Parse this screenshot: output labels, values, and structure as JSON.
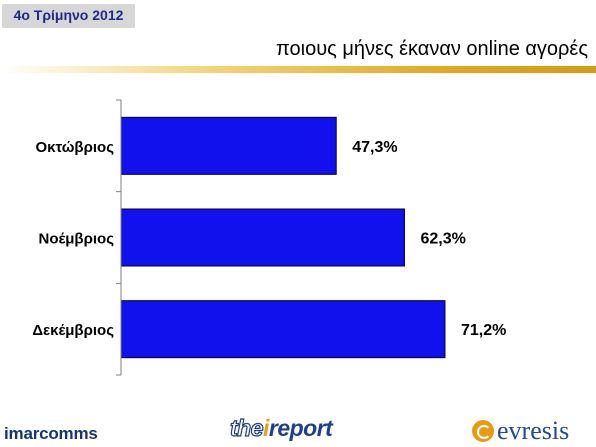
{
  "header": {
    "quarter_badge": "4ο Τρίμηνο 2012",
    "subtitle": "ποιους μήνες έκαναν online αγορές"
  },
  "chart_data": {
    "type": "bar",
    "orientation": "horizontal",
    "title": "",
    "categories": [
      "Οκτώβριος",
      "Νοέμβριος",
      "Δεκέμβριος"
    ],
    "values": [
      47.3,
      62.3,
      71.2
    ],
    "value_labels": [
      "47,3%",
      "62,3%",
      "71,2%"
    ],
    "xlim": [
      0,
      100
    ],
    "grid": false,
    "legend": "none",
    "bar_color": "#1111ee"
  },
  "footer": {
    "logo_imarcomms": "imarcomms",
    "logo_report_the": "the",
    "logo_report_i": "i",
    "logo_report_rest": "report",
    "logo_evresis": "evresis"
  }
}
